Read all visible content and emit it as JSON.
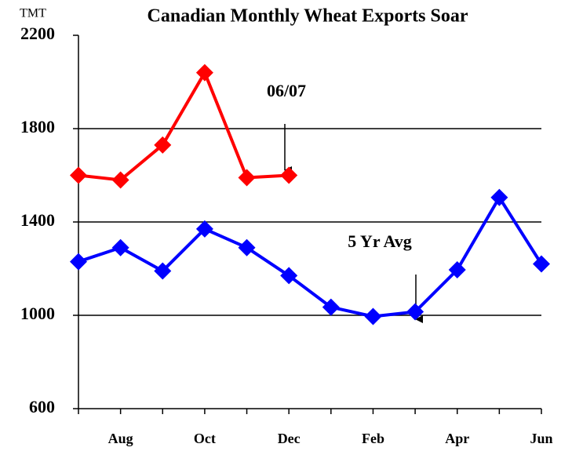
{
  "chart_data": {
    "type": "line",
    "title": "Canadian Monthly Wheat Exports Soar",
    "y_unit": "TMT",
    "categories": [
      null,
      "Aug",
      null,
      "Oct",
      null,
      "Dec",
      null,
      "Feb",
      null,
      "Apr",
      null,
      "Jun"
    ],
    "series": [
      {
        "name": "06/07",
        "color": "#ff0000",
        "values": [
          1600,
          1580,
          1730,
          2040,
          1590,
          1600,
          null,
          null,
          null,
          null,
          null,
          null
        ]
      },
      {
        "name": "5 Yr Avg",
        "color": "#0000ff",
        "values": [
          1230,
          1290,
          1190,
          1370,
          1290,
          1170,
          1035,
          995,
          1015,
          1195,
          1505,
          1220
        ]
      }
    ],
    "ylim": [
      600,
      2200
    ],
    "yticks": [
      600,
      1000,
      1400,
      1800,
      2200
    ],
    "grid": true
  }
}
